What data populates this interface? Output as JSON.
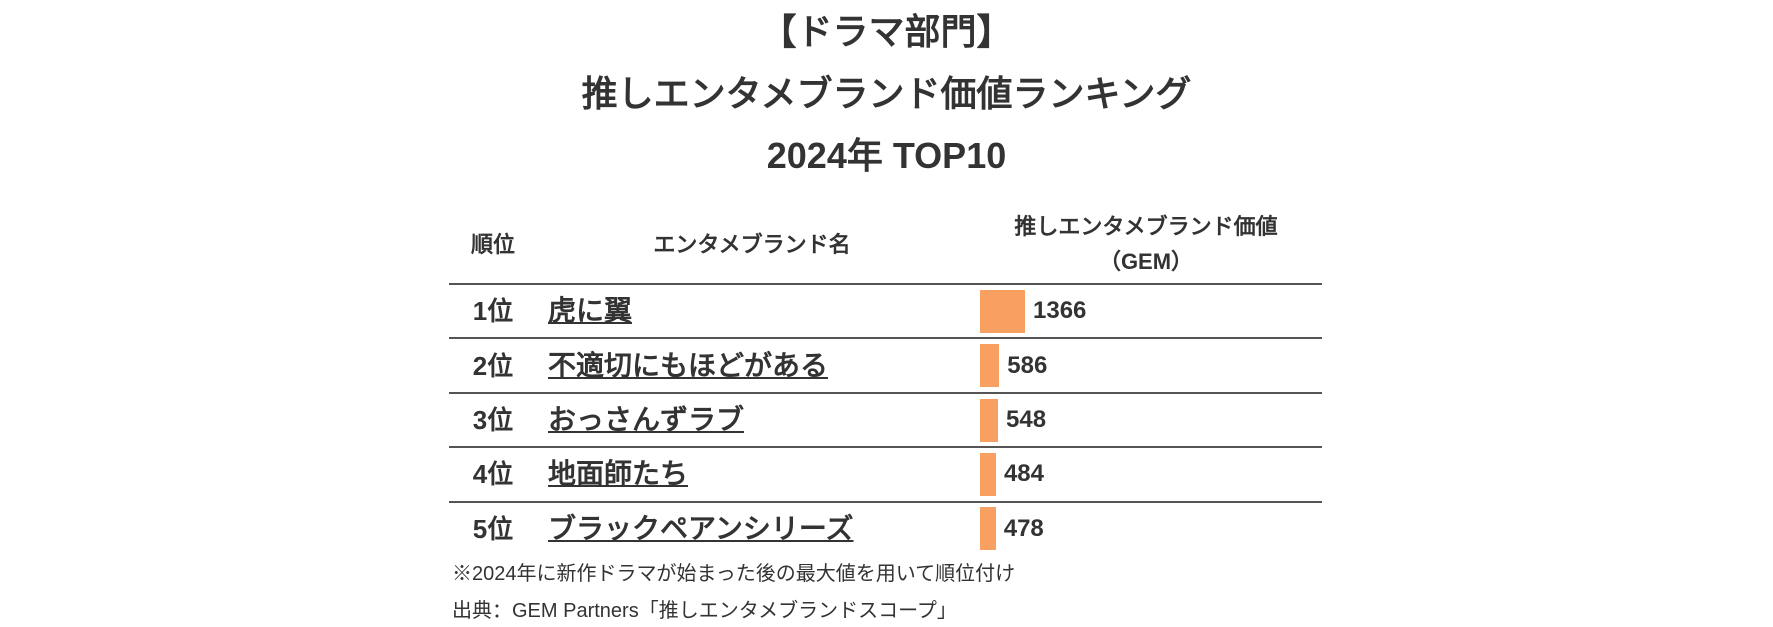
{
  "header": {
    "title_lines": [
      "【ドラマ部門】",
      "推しエンタメブランド価値ランキング",
      "2024年 TOP10"
    ]
  },
  "table": {
    "columns": [
      "順位",
      "エンタメブランド名",
      "推しエンタメブランド価値",
      "（GEM）"
    ],
    "rows": [
      {
        "rank": "1位",
        "name": "虎に翼",
        "value": 1366
      },
      {
        "rank": "2位",
        "name": "不適切にもほどがある",
        "value": 586
      },
      {
        "rank": "3位",
        "name": "おっさんずラブ",
        "value": 548
      },
      {
        "rank": "4位",
        "name": "地面師たち",
        "value": 484
      },
      {
        "rank": "5位",
        "name": "ブラックペアンシリーズ",
        "value": 478
      }
    ],
    "bar_color": "#f7a062"
  },
  "notes": [
    "※2024年に新作ドラマが始まった後の最大値を用いて順位付け",
    "出典：GEM Partners「推しエンタメブランドスコープ」"
  ]
}
